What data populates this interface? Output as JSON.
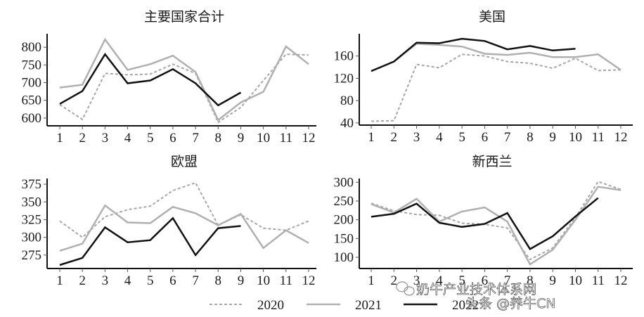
{
  "legend": [
    {
      "label": "2020",
      "color": "#a6a6a6",
      "dash": "4,3",
      "width": 2
    },
    {
      "label": "2021",
      "color": "#b0b0b0",
      "dash": "",
      "width": 2.5
    },
    {
      "label": "2022",
      "color": "#111111",
      "dash": "",
      "width": 2.5
    }
  ],
  "watermark": {
    "line1": "奶牛产业技术体系网",
    "line2": "头条 @养牛CN"
  },
  "chart_data": [
    {
      "type": "line",
      "title": "主要国家合计",
      "xlabel": "",
      "ylabel": "",
      "categories": [
        "1",
        "2",
        "3",
        "4",
        "5",
        "6",
        "7",
        "8",
        "9",
        "10",
        "11",
        "12"
      ],
      "yticks": [
        600,
        650,
        700,
        750,
        800
      ],
      "ylim": [
        578,
        838
      ],
      "grid": false,
      "legend_position": "bottom",
      "series": [
        {
          "name": "2020",
          "values": [
            638,
            596,
            726,
            722,
            724,
            752,
            726,
            588,
            630,
            706,
            780,
            778
          ]
        },
        {
          "name": "2021",
          "values": [
            686,
            694,
            822,
            736,
            752,
            776,
            730,
            594,
            644,
            674,
            802,
            752
          ]
        },
        {
          "name": "2022",
          "values": [
            640,
            676,
            780,
            698,
            706,
            738,
            698,
            636,
            672,
            null,
            null,
            null
          ]
        }
      ]
    },
    {
      "type": "line",
      "title": "美国",
      "xlabel": "",
      "ylabel": "",
      "categories": [
        "1",
        "2",
        "3",
        "4",
        "5",
        "6",
        "7",
        "8",
        "9",
        "10",
        "11",
        "12"
      ],
      "yticks": [
        40,
        80,
        120,
        160
      ],
      "ylim": [
        36,
        200
      ],
      "grid": false,
      "legend_position": "bottom",
      "series": [
        {
          "name": "2020",
          "values": [
            43,
            44,
            145,
            139,
            163,
            160,
            150,
            147,
            138,
            156,
            134,
            135
          ]
        },
        {
          "name": "2021",
          "values": [
            133,
            150,
            182,
            180,
            177,
            164,
            162,
            166,
            158,
            158,
            163,
            135
          ]
        },
        {
          "name": "2022",
          "values": [
            133,
            150,
            184,
            183,
            191,
            187,
            172,
            178,
            170,
            173,
            null,
            null
          ]
        }
      ]
    },
    {
      "type": "line",
      "title": "欧盟",
      "xlabel": "",
      "ylabel": "",
      "categories": [
        "1",
        "2",
        "3",
        "4",
        "5",
        "6",
        "7",
        "8",
        "9",
        "10",
        "11",
        "12"
      ],
      "yticks": [
        275,
        300,
        325,
        350,
        375
      ],
      "ylim": [
        256,
        383
      ],
      "grid": false,
      "legend_position": "bottom",
      "series": [
        {
          "name": "2020",
          "values": [
            323,
            300,
            329,
            339,
            344,
            366,
            377,
            317,
            332,
            313,
            310,
            323
          ]
        },
        {
          "name": "2021",
          "values": [
            281,
            291,
            345,
            321,
            320,
            343,
            334,
            317,
            333,
            285,
            310,
            292
          ]
        },
        {
          "name": "2022",
          "values": [
            261,
            271,
            314,
            293,
            296,
            327,
            275,
            313,
            316,
            null,
            null,
            null
          ]
        }
      ]
    },
    {
      "type": "line",
      "title": "新西兰",
      "xlabel": "",
      "ylabel": "",
      "categories": [
        "1",
        "2",
        "3",
        "4",
        "5",
        "6",
        "7",
        "8",
        "9",
        "10",
        "11",
        "12"
      ],
      "yticks": [
        100,
        150,
        200,
        250,
        300
      ],
      "ylim": [
        70,
        310
      ],
      "grid": false,
      "legend_position": "bottom",
      "series": [
        {
          "name": "2020",
          "values": [
            244,
            224,
            214,
            212,
            191,
            188,
            178,
            94,
            125,
            206,
            302,
            281
          ]
        },
        {
          "name": "2021",
          "values": [
            242,
            219,
            256,
            195,
            222,
            233,
            195,
            81,
            120,
            200,
            288,
            279
          ]
        },
        {
          "name": "2022",
          "values": [
            208,
            216,
            243,
            192,
            181,
            189,
            218,
            122,
            156,
            209,
            258,
            null
          ]
        }
      ]
    }
  ]
}
